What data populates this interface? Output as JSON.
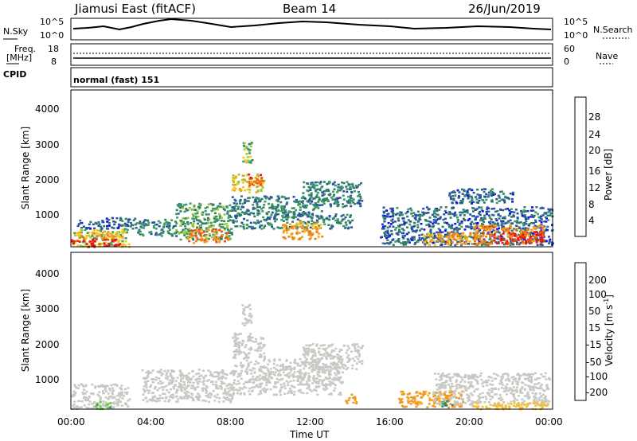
{
  "header": {
    "station": "Jiamusi East (fitACF)",
    "beam": "Beam 14",
    "date": "26/Jun/2019"
  },
  "strip_labels": {
    "nsky": "N.Sky",
    "nsky_hi": "10^5",
    "nsky_lo": "10^0",
    "nsearch": "N.Search",
    "nsearch_hi": "10^5",
    "nsearch_lo": "10^0",
    "freq_line1": "Freq.",
    "freq_line2": "[MHz]",
    "freq_hi": "18",
    "freq_lo": "8",
    "nave": "Nave",
    "nave_hi": "60",
    "nave_lo": "0",
    "cpid": "CPID",
    "cpid_value": "normal (fast) 151"
  },
  "axes": {
    "ylabel": "Slant Range [km]",
    "xlabel": "Time UT",
    "yticks": [
      "1000",
      "2000",
      "3000",
      "4000"
    ],
    "xticks": [
      "00:00",
      "04:00",
      "08:00",
      "12:00",
      "16:00",
      "20:00",
      "00:00"
    ]
  },
  "colorbars": {
    "power": {
      "label": "Power [dB]",
      "ticks": [
        "4",
        "8",
        "12",
        "16",
        "20",
        "24",
        "28"
      ],
      "colors": [
        "#1010ee",
        "#2a4ea8",
        "#2e7a6e",
        "#3d9a60",
        "#9bc832",
        "#f4c81e",
        "#f0a020",
        "#ee7a14",
        "#ee4a10",
        "#ee1010"
      ]
    },
    "velocity": {
      "label": "Velocity [m s",
      "label_sup": "-1",
      "label_end": "]",
      "ticks": [
        "200",
        "100",
        "50",
        "15",
        "-15",
        "-50",
        "-100",
        "-200"
      ],
      "colors": [
        "#1a24c0",
        "#2a54a8",
        "#2e8a70",
        "#6ac840",
        "#c8c8c4",
        "#f4c032",
        "#f09a22",
        "#ee7214",
        "#ee4010",
        "#ee1010"
      ]
    }
  },
  "chart_data": [
    {
      "type": "heatmap",
      "title": "Power",
      "ylabel": "Slant Range [km]",
      "xlabel": "Time UT",
      "xlim": [
        0,
        24
      ],
      "ylim": [
        180,
        4500
      ],
      "colorbar_range": [
        0,
        30
      ],
      "regions": [
        {
          "t0": 0.0,
          "t1": 2.9,
          "r0": 200,
          "r1": 700,
          "db": 14
        },
        {
          "t0": 0.0,
          "t1": 2.4,
          "r0": 200,
          "r1": 420,
          "db": 28
        },
        {
          "t0": 0.3,
          "t1": 2.6,
          "r0": 420,
          "r1": 620,
          "db": 20
        },
        {
          "t0": 0.3,
          "t1": 3.2,
          "r0": 700,
          "r1": 1000,
          "db": 6
        },
        {
          "t0": 3.2,
          "t1": 5.2,
          "r0": 500,
          "r1": 950,
          "db": 8
        },
        {
          "t0": 5.2,
          "t1": 8.0,
          "r0": 400,
          "r1": 1400,
          "db": 10
        },
        {
          "t0": 5.8,
          "t1": 7.8,
          "r0": 300,
          "r1": 700,
          "db": 22
        },
        {
          "t0": 8.0,
          "t1": 9.6,
          "r0": 1700,
          "r1": 2200,
          "db": 16
        },
        {
          "t0": 8.7,
          "t1": 9.5,
          "r0": 1900,
          "r1": 2200,
          "db": 24
        },
        {
          "t0": 8.5,
          "t1": 9.0,
          "r0": 2500,
          "r1": 3100,
          "db": 12
        },
        {
          "t0": 8.0,
          "t1": 12.5,
          "r0": 700,
          "r1": 1600,
          "db": 8
        },
        {
          "t0": 10.5,
          "t1": 12.5,
          "r0": 400,
          "r1": 900,
          "db": 20
        },
        {
          "t0": 11.5,
          "t1": 14.5,
          "r0": 1300,
          "r1": 2000,
          "db": 8
        },
        {
          "t0": 12.5,
          "t1": 14.0,
          "r0": 700,
          "r1": 1100,
          "db": 8
        },
        {
          "t0": 15.4,
          "t1": 24.0,
          "r0": 250,
          "r1": 1300,
          "db": 6
        },
        {
          "t0": 17.5,
          "t1": 20.0,
          "r0": 250,
          "r1": 600,
          "db": 20
        },
        {
          "t0": 20.0,
          "t1": 23.5,
          "r0": 250,
          "r1": 800,
          "db": 22
        },
        {
          "t0": 21.0,
          "t1": 23.5,
          "r0": 300,
          "r1": 600,
          "db": 28
        },
        {
          "t0": 18.8,
          "t1": 22.0,
          "r0": 1400,
          "r1": 1800,
          "db": 6
        }
      ]
    },
    {
      "type": "heatmap",
      "title": "Velocity",
      "ylabel": "Slant Range [km]",
      "xlabel": "Time UT",
      "xlim": [
        0,
        24
      ],
      "ylim": [
        180,
        4500
      ],
      "colorbar_range": [
        -250,
        250
      ],
      "regions": [
        {
          "t0": 0.0,
          "t1": 2.9,
          "r0": 200,
          "r1": 900,
          "v": 0
        },
        {
          "t0": 1.2,
          "t1": 2.0,
          "r0": 200,
          "r1": 400,
          "v": 40
        },
        {
          "t0": 3.5,
          "t1": 8.0,
          "r0": 400,
          "r1": 1300,
          "v": 0
        },
        {
          "t0": 8.0,
          "t1": 9.6,
          "r0": 1600,
          "r1": 2300,
          "v": 0
        },
        {
          "t0": 8.5,
          "t1": 9.0,
          "r0": 2500,
          "r1": 3100,
          "v": 0
        },
        {
          "t0": 8.0,
          "t1": 13.5,
          "r0": 600,
          "r1": 1600,
          "v": 0
        },
        {
          "t0": 11.5,
          "t1": 14.5,
          "r0": 1300,
          "r1": 2000,
          "v": 0
        },
        {
          "t0": 13.6,
          "t1": 14.2,
          "r0": 350,
          "r1": 650,
          "v": -60
        },
        {
          "t0": 16.2,
          "t1": 19.5,
          "r0": 250,
          "r1": 700,
          "v": -60
        },
        {
          "t0": 18.0,
          "t1": 23.8,
          "r0": 300,
          "r1": 1200,
          "v": 0
        },
        {
          "t0": 20.0,
          "t1": 23.8,
          "r0": 200,
          "r1": 400,
          "v": -30
        },
        {
          "t0": 18.3,
          "t1": 19.0,
          "r0": 250,
          "r1": 450,
          "v": 60
        }
      ]
    }
  ]
}
